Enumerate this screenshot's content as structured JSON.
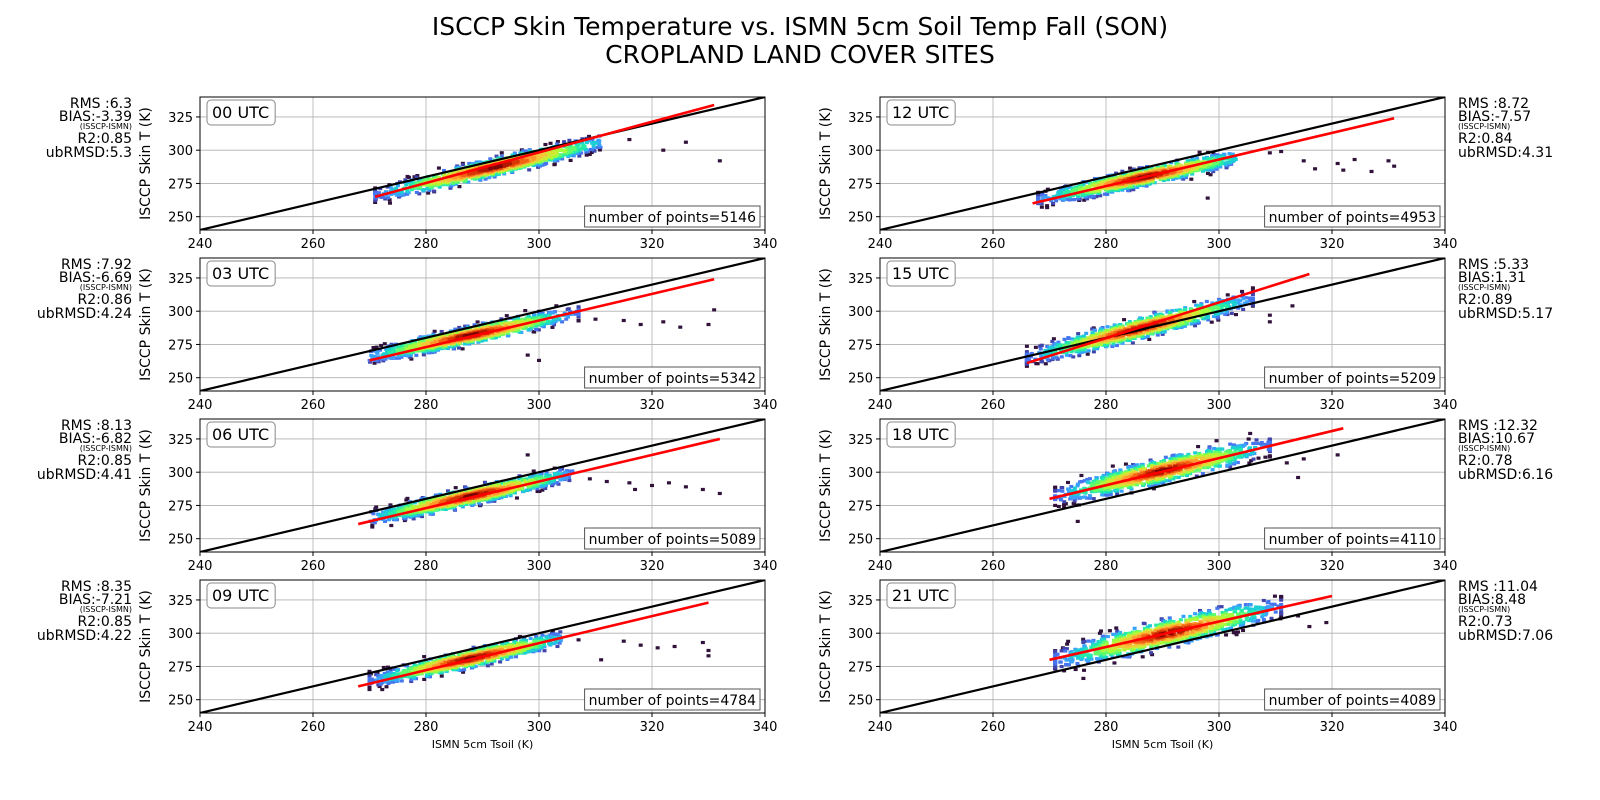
{
  "title_line1": "ISCCP Skin Temperature vs. ISMN 5cm Soil Temp Fall (SON)",
  "title_line2": "CROPLAND LAND COVER SITES",
  "colors": {
    "one_to_one": "#000000",
    "fit": "#ff0000",
    "grid": "#b0b0b0",
    "colormap": [
      "#30123b",
      "#4145ab",
      "#4675ed",
      "#39a2fc",
      "#1bcfd4",
      "#24eca6",
      "#61fc6c",
      "#a4fc3b",
      "#d1e834",
      "#f3c63a",
      "#fe9b2d",
      "#f36315",
      "#d93806",
      "#b11901",
      "#7a0402"
    ]
  },
  "chart_data": [
    {
      "type": "scatter",
      "label": "00 UTC",
      "xlabel": "",
      "ylabel": "ISCCP Skin T (K)",
      "xlim": [
        240,
        340
      ],
      "ylim": [
        240,
        340
      ],
      "xticks": [
        240,
        260,
        280,
        300,
        320,
        340
      ],
      "yticks": [
        250,
        275,
        300,
        325
      ],
      "grid": true,
      "rms": "RMS :6.3",
      "bias": "BIAS:-3.39",
      "bias_note": "(ISSCP-ISMN)",
      "r2": "R2:0.85",
      "ubrmsd": "ubRMSD:5.3",
      "n_label": "number of points=5146",
      "fit_line": {
        "x": [
          271,
          331
        ],
        "y": [
          265,
          334
        ]
      },
      "cloud": {
        "x_center": 292,
        "y_center": 287,
        "slope": 1.0,
        "x_half": 21,
        "y_spread": 6,
        "x_min": 271,
        "x_max": 311
      },
      "outliers": [
        [
          316,
          308
        ],
        [
          322,
          300
        ],
        [
          326,
          306
        ],
        [
          332,
          292
        ]
      ]
    },
    {
      "type": "scatter",
      "label": "03 UTC",
      "xlabel": "",
      "ylabel": "ISCCP Skin T (K)",
      "xlim": [
        240,
        340
      ],
      "ylim": [
        240,
        340
      ],
      "xticks": [
        240,
        260,
        280,
        300,
        320,
        340
      ],
      "yticks": [
        250,
        275,
        300,
        325
      ],
      "grid": true,
      "rms": "RMS :7.92",
      "bias": "BIAS:-6.69",
      "bias_note": "(ISSCP-ISMN)",
      "r2": "R2:0.86",
      "ubrmsd": "ubRMSD:4.24",
      "n_label": "number of points=5342",
      "fit_line": {
        "x": [
          270,
          331
        ],
        "y": [
          263,
          324
        ]
      },
      "cloud": {
        "x_center": 288,
        "y_center": 282,
        "slope": 0.9,
        "x_half": 19,
        "y_spread": 6,
        "x_min": 270,
        "x_max": 308
      },
      "outliers": [
        [
          310,
          294
        ],
        [
          315,
          293
        ],
        [
          318,
          290
        ],
        [
          322,
          292
        ],
        [
          325,
          288
        ],
        [
          330,
          290
        ],
        [
          331,
          301
        ],
        [
          300,
          263
        ],
        [
          298,
          267
        ]
      ]
    },
    {
      "type": "scatter",
      "label": "06 UTC",
      "xlabel": "",
      "ylabel": "ISCCP Skin T (K)",
      "xlim": [
        240,
        340
      ],
      "ylim": [
        240,
        340
      ],
      "xticks": [
        240,
        260,
        280,
        300,
        320,
        340
      ],
      "yticks": [
        250,
        275,
        300,
        325
      ],
      "grid": true,
      "rms": "RMS :8.13",
      "bias": "BIAS:-6.82",
      "bias_note": "(ISSCP-ISMN)",
      "r2": "R2:0.85",
      "ubrmsd": "ubRMSD:4.41",
      "n_label": "number of points=5089",
      "fit_line": {
        "x": [
          268,
          332
        ],
        "y": [
          261,
          325
        ]
      },
      "cloud": {
        "x_center": 288,
        "y_center": 282,
        "slope": 0.95,
        "x_half": 19,
        "y_spread": 6,
        "x_min": 270,
        "x_max": 306
      },
      "outliers": [
        [
          309,
          295
        ],
        [
          312,
          293
        ],
        [
          316,
          292
        ],
        [
          320,
          290
        ],
        [
          323,
          292
        ],
        [
          326,
          289
        ],
        [
          329,
          287
        ],
        [
          332,
          284
        ],
        [
          317,
          287
        ],
        [
          298,
          313
        ]
      ]
    },
    {
      "type": "scatter",
      "label": "09 UTC",
      "xlabel": "ISMN 5cm Tsoil (K)",
      "ylabel": "ISCCP Skin T (K)",
      "xlim": [
        240,
        340
      ],
      "ylim": [
        240,
        340
      ],
      "xticks": [
        240,
        260,
        280,
        300,
        320,
        340
      ],
      "yticks": [
        250,
        275,
        300,
        325
      ],
      "grid": true,
      "rms": "RMS :8.35",
      "bias": "BIAS:-7.21",
      "bias_note": "(ISSCP-ISMN)",
      "r2": "R2:0.85",
      "ubrmsd": "ubRMSD:4.22",
      "n_label": "number of points=4784",
      "fit_line": {
        "x": [
          268,
          330
        ],
        "y": [
          260,
          323
        ]
      },
      "cloud": {
        "x_center": 288,
        "y_center": 281,
        "slope": 0.95,
        "x_half": 18,
        "y_spread": 6,
        "x_min": 269,
        "x_max": 304
      },
      "outliers": [
        [
          307,
          295
        ],
        [
          311,
          280
        ],
        [
          315,
          294
        ],
        [
          318,
          291
        ],
        [
          321,
          289
        ],
        [
          324,
          290
        ],
        [
          329,
          293
        ],
        [
          330,
          287
        ],
        [
          330,
          283
        ]
      ]
    },
    {
      "type": "scatter",
      "label": "12 UTC",
      "xlabel": "",
      "ylabel": "ISCCP Skin T (K)",
      "xlim": [
        240,
        340
      ],
      "ylim": [
        240,
        340
      ],
      "xticks": [
        240,
        260,
        280,
        300,
        320,
        340
      ],
      "yticks": [
        250,
        275,
        300,
        325
      ],
      "grid": true,
      "rms": "RMS :8.72",
      "bias": "BIAS:-7.57",
      "bias_note": "(ISSCP-ISMN)",
      "r2": "R2:0.84",
      "ubrmsd": "ubRMSD:4.31",
      "n_label": "number of points=4953",
      "fit_line": {
        "x": [
          267,
          331
        ],
        "y": [
          260,
          324
        ]
      },
      "cloud": {
        "x_center": 287,
        "y_center": 280,
        "slope": 0.9,
        "x_half": 19,
        "y_spread": 6,
        "x_min": 268,
        "x_max": 303
      },
      "outliers": [
        [
          309,
          298
        ],
        [
          311,
          299
        ],
        [
          315,
          292
        ],
        [
          317,
          286
        ],
        [
          321,
          290
        ],
        [
          322,
          285
        ],
        [
          324,
          293
        ],
        [
          327,
          284
        ],
        [
          330,
          292
        ],
        [
          331,
          288
        ],
        [
          298,
          264
        ]
      ]
    },
    {
      "type": "scatter",
      "label": "15 UTC",
      "xlabel": "",
      "ylabel": "ISCCP Skin T (K)",
      "xlim": [
        240,
        340
      ],
      "ylim": [
        240,
        340
      ],
      "xticks": [
        240,
        260,
        280,
        300,
        320,
        340
      ],
      "yticks": [
        250,
        275,
        300,
        325
      ],
      "grid": true,
      "rms": "RMS :5.33",
      "bias": "BIAS:1.31",
      "bias_note": "(ISSCP-ISMN)",
      "r2": "R2:0.89",
      "ubrmsd": "ubRMSD:5.17",
      "n_label": "number of points=5209",
      "fit_line": {
        "x": [
          266,
          316
        ],
        "y": [
          261,
          328
        ]
      },
      "cloud": {
        "x_center": 286,
        "y_center": 287,
        "slope": 1.1,
        "x_half": 20,
        "y_spread": 7,
        "x_min": 266,
        "x_max": 307
      },
      "outliers": [
        [
          309,
          297
        ],
        [
          309,
          292
        ],
        [
          313,
          304
        ]
      ]
    },
    {
      "type": "scatter",
      "label": "18 UTC",
      "xlabel": "",
      "ylabel": "ISCCP Skin T (K)",
      "xlim": [
        240,
        340
      ],
      "ylim": [
        240,
        340
      ],
      "xticks": [
        240,
        260,
        280,
        300,
        320,
        340
      ],
      "yticks": [
        250,
        275,
        300,
        325
      ],
      "grid": true,
      "rms": "RMS :12.32",
      "bias": "BIAS:10.67",
      "bias_note": "(ISSCP-ISMN)",
      "r2": "R2:0.78",
      "ubrmsd": "ubRMSD:6.16",
      "n_label": "number of points=4110",
      "fit_line": {
        "x": [
          270,
          322
        ],
        "y": [
          280,
          333
        ]
      },
      "cloud": {
        "x_center": 290,
        "y_center": 301,
        "slope": 1.0,
        "x_half": 19,
        "y_spread": 8,
        "x_min": 270,
        "x_max": 309
      },
      "outliers": [
        [
          312,
          307
        ],
        [
          314,
          296
        ],
        [
          315,
          310
        ],
        [
          321,
          313
        ],
        [
          275,
          263
        ]
      ]
    },
    {
      "type": "scatter",
      "label": "21 UTC",
      "xlabel": "ISMN 5cm Tsoil (K)",
      "ylabel": "ISCCP Skin T (K)",
      "xlim": [
        240,
        340
      ],
      "ylim": [
        240,
        340
      ],
      "xticks": [
        240,
        260,
        280,
        300,
        320,
        340
      ],
      "yticks": [
        250,
        275,
        300,
        325
      ],
      "grid": true,
      "rms": "RMS :11.04",
      "bias": "BIAS:8.48",
      "bias_note": "(ISSCP-ISMN)",
      "r2": "R2:0.73",
      "ubrmsd": "ubRMSD:7.06",
      "n_label": "number of points=4089",
      "fit_line": {
        "x": [
          270,
          320
        ],
        "y": [
          280,
          328
        ]
      },
      "cloud": {
        "x_center": 291,
        "y_center": 300,
        "slope": 1.0,
        "x_half": 20,
        "y_spread": 9,
        "x_min": 271,
        "x_max": 312
      },
      "outliers": [
        [
          314,
          313
        ],
        [
          316,
          305
        ],
        [
          319,
          308
        ],
        [
          276,
          266
        ]
      ]
    }
  ]
}
